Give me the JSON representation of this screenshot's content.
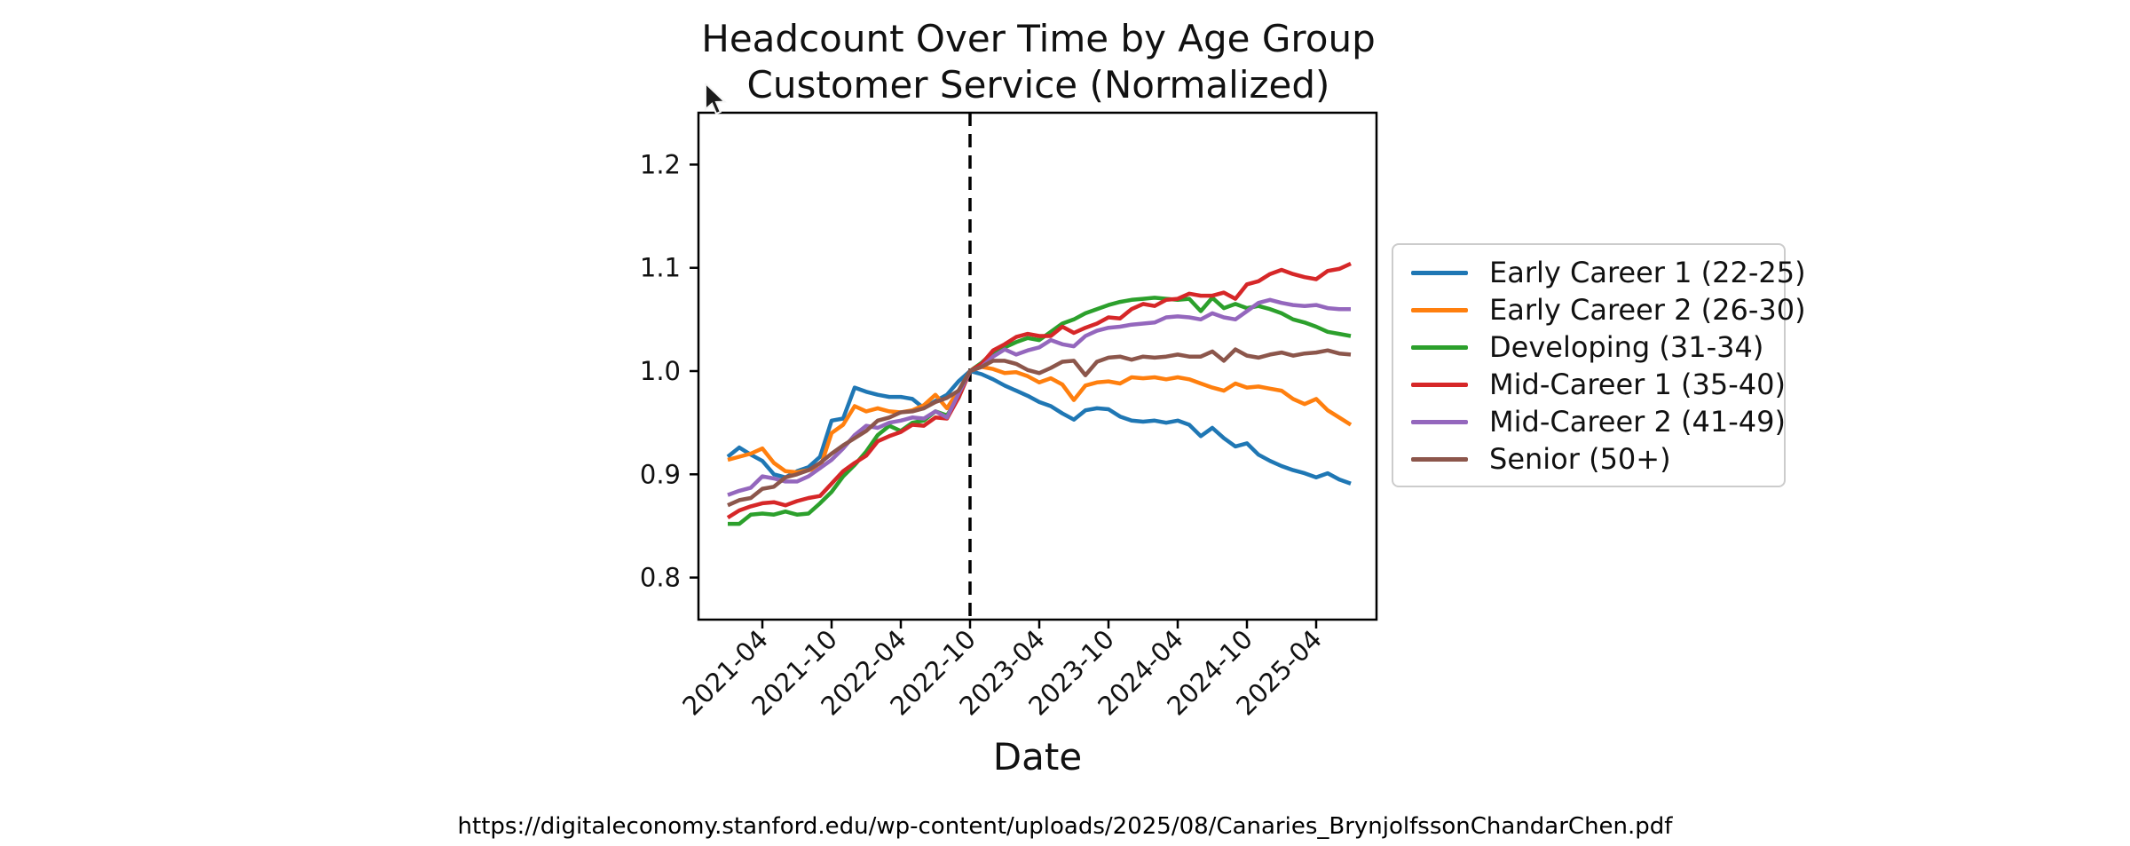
{
  "header": {
    "title_line1": "Headcount Over Time by Age Group",
    "title_line2": "Customer Service (Normalized)"
  },
  "footer": {
    "url": "https://digitaleconomy.stanford.edu/wp-content/uploads/2025/08/Canaries_BrynjolfssonChandarChen.pdf"
  },
  "chart_data": {
    "type": "line",
    "title": "Headcount Over Time by Age Group",
    "subtitle": "Customer Service (Normalized)",
    "xlabel": "Date",
    "ylabel": "",
    "grid": false,
    "legend_position": "outside-right",
    "ylim": [
      0.759,
      1.25
    ],
    "yticks": [
      0.8,
      0.9,
      1.0,
      1.1,
      1.2
    ],
    "xtick_labels": [
      "2021-04",
      "2021-10",
      "2022-04",
      "2022-10",
      "2023-04",
      "2023-10",
      "2024-04",
      "2024-10",
      "2025-04"
    ],
    "xtick_month_indices": [
      3,
      9,
      15,
      21,
      27,
      33,
      39,
      45,
      51
    ],
    "vline": {
      "month": "2022-10",
      "month_index": 21,
      "style": "dashed",
      "color": "#000000"
    },
    "axis_color": "#000000",
    "legend_border_color": "#cccccc",
    "months": [
      "2021-01",
      "2021-02",
      "2021-03",
      "2021-04",
      "2021-05",
      "2021-06",
      "2021-07",
      "2021-08",
      "2021-09",
      "2021-10",
      "2021-11",
      "2021-12",
      "2022-01",
      "2022-02",
      "2022-03",
      "2022-04",
      "2022-05",
      "2022-06",
      "2022-07",
      "2022-08",
      "2022-09",
      "2022-10",
      "2022-11",
      "2022-12",
      "2023-01",
      "2023-02",
      "2023-03",
      "2023-04",
      "2023-05",
      "2023-06",
      "2023-07",
      "2023-08",
      "2023-09",
      "2023-10",
      "2023-11",
      "2023-12",
      "2024-01",
      "2024-02",
      "2024-03",
      "2024-04",
      "2024-05",
      "2024-06",
      "2024-07",
      "2024-08",
      "2024-09",
      "2024-10",
      "2024-11",
      "2024-12",
      "2025-01",
      "2025-02",
      "2025-03",
      "2025-04",
      "2025-05",
      "2025-06",
      "2025-07"
    ],
    "series": [
      {
        "name": "Early Career 1 (22-25)",
        "color": "#1f77b4",
        "values": [
          0.917,
          0.926,
          0.919,
          0.913,
          0.9,
          0.897,
          0.903,
          0.907,
          0.917,
          0.952,
          0.954,
          0.984,
          0.98,
          0.977,
          0.975,
          0.975,
          0.973,
          0.964,
          0.971,
          0.977,
          0.99,
          1.0,
          0.997,
          0.992,
          0.986,
          0.981,
          0.976,
          0.97,
          0.966,
          0.959,
          0.953,
          0.962,
          0.964,
          0.963,
          0.956,
          0.952,
          0.951,
          0.952,
          0.95,
          0.952,
          0.948,
          0.937,
          0.945,
          0.935,
          0.927,
          0.93,
          0.919,
          0.913,
          0.908,
          0.904,
          0.901,
          0.897,
          0.901,
          0.895,
          0.891
        ]
      },
      {
        "name": "Early Career 2 (26-30)",
        "color": "#ff7f0e",
        "values": [
          0.914,
          0.917,
          0.92,
          0.925,
          0.911,
          0.903,
          0.902,
          0.904,
          0.906,
          0.94,
          0.948,
          0.966,
          0.961,
          0.964,
          0.961,
          0.96,
          0.962,
          0.967,
          0.977,
          0.964,
          0.981,
          1.0,
          1.004,
          1.002,
          0.998,
          0.999,
          0.995,
          0.989,
          0.993,
          0.987,
          0.972,
          0.986,
          0.989,
          0.99,
          0.988,
          0.994,
          0.993,
          0.994,
          0.992,
          0.994,
          0.992,
          0.988,
          0.984,
          0.981,
          0.988,
          0.984,
          0.985,
          0.983,
          0.981,
          0.973,
          0.968,
          0.973,
          0.962,
          0.955,
          0.948
        ]
      },
      {
        "name": "Developing (31-34)",
        "color": "#2ca02c",
        "values": [
          0.852,
          0.852,
          0.861,
          0.862,
          0.861,
          0.864,
          0.861,
          0.862,
          0.872,
          0.883,
          0.898,
          0.909,
          0.922,
          0.938,
          0.947,
          0.942,
          0.95,
          0.952,
          0.961,
          0.957,
          0.974,
          1.0,
          1.008,
          1.018,
          1.023,
          1.028,
          1.032,
          1.03,
          1.038,
          1.046,
          1.05,
          1.056,
          1.06,
          1.064,
          1.067,
          1.069,
          1.07,
          1.071,
          1.07,
          1.069,
          1.07,
          1.058,
          1.071,
          1.061,
          1.065,
          1.061,
          1.063,
          1.06,
          1.056,
          1.05,
          1.047,
          1.043,
          1.038,
          1.036,
          1.034
        ]
      },
      {
        "name": "Mid-Career 1 (35-40)",
        "color": "#d62728",
        "values": [
          0.858,
          0.865,
          0.869,
          0.872,
          0.873,
          0.87,
          0.874,
          0.877,
          0.879,
          0.891,
          0.903,
          0.911,
          0.918,
          0.932,
          0.937,
          0.941,
          0.948,
          0.947,
          0.955,
          0.954,
          0.974,
          1.0,
          1.007,
          1.02,
          1.026,
          1.033,
          1.036,
          1.034,
          1.034,
          1.043,
          1.037,
          1.042,
          1.046,
          1.052,
          1.051,
          1.06,
          1.065,
          1.063,
          1.069,
          1.07,
          1.075,
          1.073,
          1.073,
          1.076,
          1.07,
          1.084,
          1.087,
          1.094,
          1.098,
          1.094,
          1.091,
          1.089,
          1.097,
          1.099,
          1.104
        ]
      },
      {
        "name": "Mid-Career 2 (41-49)",
        "color": "#9467bd",
        "values": [
          0.88,
          0.884,
          0.887,
          0.898,
          0.896,
          0.893,
          0.893,
          0.898,
          0.906,
          0.914,
          0.925,
          0.938,
          0.947,
          0.945,
          0.95,
          0.952,
          0.955,
          0.954,
          0.961,
          0.955,
          0.978,
          1.0,
          1.004,
          1.014,
          1.021,
          1.016,
          1.02,
          1.023,
          1.03,
          1.026,
          1.024,
          1.034,
          1.039,
          1.042,
          1.043,
          1.045,
          1.046,
          1.047,
          1.052,
          1.053,
          1.052,
          1.05,
          1.056,
          1.052,
          1.05,
          1.058,
          1.066,
          1.069,
          1.066,
          1.064,
          1.063,
          1.064,
          1.061,
          1.06,
          1.06
        ]
      },
      {
        "name": "Senior (50+)",
        "color": "#8c564b",
        "values": [
          0.87,
          0.875,
          0.877,
          0.886,
          0.888,
          0.897,
          0.9,
          0.904,
          0.911,
          0.92,
          0.928,
          0.935,
          0.942,
          0.952,
          0.955,
          0.96,
          0.961,
          0.964,
          0.97,
          0.974,
          0.981,
          1.0,
          1.004,
          1.01,
          1.01,
          1.007,
          1.001,
          0.998,
          1.003,
          1.009,
          1.01,
          0.996,
          1.009,
          1.013,
          1.014,
          1.011,
          1.014,
          1.013,
          1.014,
          1.016,
          1.014,
          1.014,
          1.019,
          1.01,
          1.021,
          1.015,
          1.013,
          1.016,
          1.018,
          1.015,
          1.017,
          1.018,
          1.02,
          1.017,
          1.016
        ]
      }
    ]
  }
}
